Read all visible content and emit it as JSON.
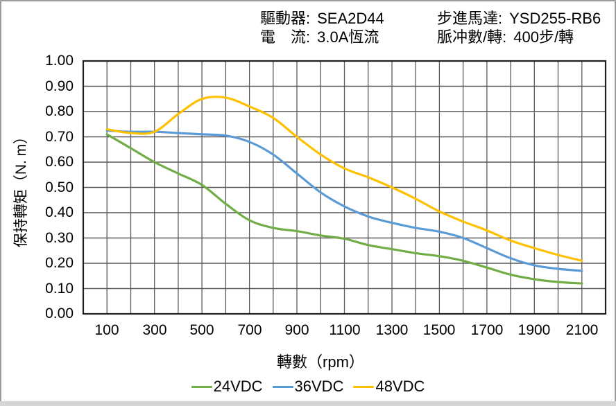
{
  "header": {
    "driver_label": "驅動器:",
    "driver_value": "SEA2D44",
    "current_label": "電　流:",
    "current_value": "3.0A恆流",
    "motor_label": "步進馬達:",
    "motor_value": "YSD255-RB6",
    "pulses_label": "脈冲數/轉:",
    "pulses_value": "400步/轉"
  },
  "chart_data": {
    "type": "line",
    "xlabel": "轉數（rpm）",
    "ylabel": "保持轉矩（N. m）",
    "xlim": [
      0,
      2200
    ],
    "ylim": [
      0,
      1.0
    ],
    "grid": true,
    "grid_x_step": 100,
    "grid_y_step": 0.1,
    "legend_position": "bottom",
    "x": [
      100,
      200,
      300,
      400,
      500,
      600,
      700,
      800,
      900,
      1000,
      1100,
      1200,
      1300,
      1400,
      1500,
      1600,
      1700,
      1800,
      1900,
      2000,
      2100
    ],
    "series": [
      {
        "name": "24VDC",
        "color": "#70AD47",
        "values": [
          0.71,
          0.655,
          0.6,
          0.555,
          0.51,
          0.435,
          0.37,
          0.34,
          0.327,
          0.31,
          0.297,
          0.272,
          0.256,
          0.24,
          0.228,
          0.21,
          0.183,
          0.155,
          0.137,
          0.126,
          0.12
        ]
      },
      {
        "name": "36VDC",
        "color": "#5B9BD5",
        "values": [
          0.725,
          0.72,
          0.72,
          0.715,
          0.71,
          0.705,
          0.68,
          0.63,
          0.555,
          0.48,
          0.425,
          0.385,
          0.36,
          0.34,
          0.325,
          0.3,
          0.26,
          0.22,
          0.192,
          0.178,
          0.17
        ]
      },
      {
        "name": "48VDC",
        "color": "#FFC000",
        "values": [
          0.73,
          0.715,
          0.72,
          0.79,
          0.85,
          0.855,
          0.82,
          0.775,
          0.7,
          0.63,
          0.575,
          0.54,
          0.5,
          0.455,
          0.405,
          0.365,
          0.33,
          0.29,
          0.26,
          0.233,
          0.21
        ]
      }
    ],
    "x_tick_values": [
      100,
      300,
      500,
      700,
      900,
      1100,
      1300,
      1500,
      1700,
      1900,
      2100
    ],
    "x_tick_labels": [
      "100",
      "300",
      "500",
      "700",
      "900",
      "1100",
      "1300",
      "1500",
      "1700",
      "1900",
      "2100"
    ],
    "y_tick_values": [
      0.0,
      0.1,
      0.2,
      0.3,
      0.4,
      0.5,
      0.6,
      0.7,
      0.8,
      0.9,
      1.0
    ],
    "y_tick_labels": [
      "0.00",
      "0.10",
      "0.20",
      "0.30",
      "0.40",
      "0.50",
      "0.60",
      "0.70",
      "0.80",
      "0.90",
      "1.00"
    ],
    "colors": {
      "grid": "#595959",
      "border": "#1f1f1f",
      "text": "#000000"
    }
  }
}
